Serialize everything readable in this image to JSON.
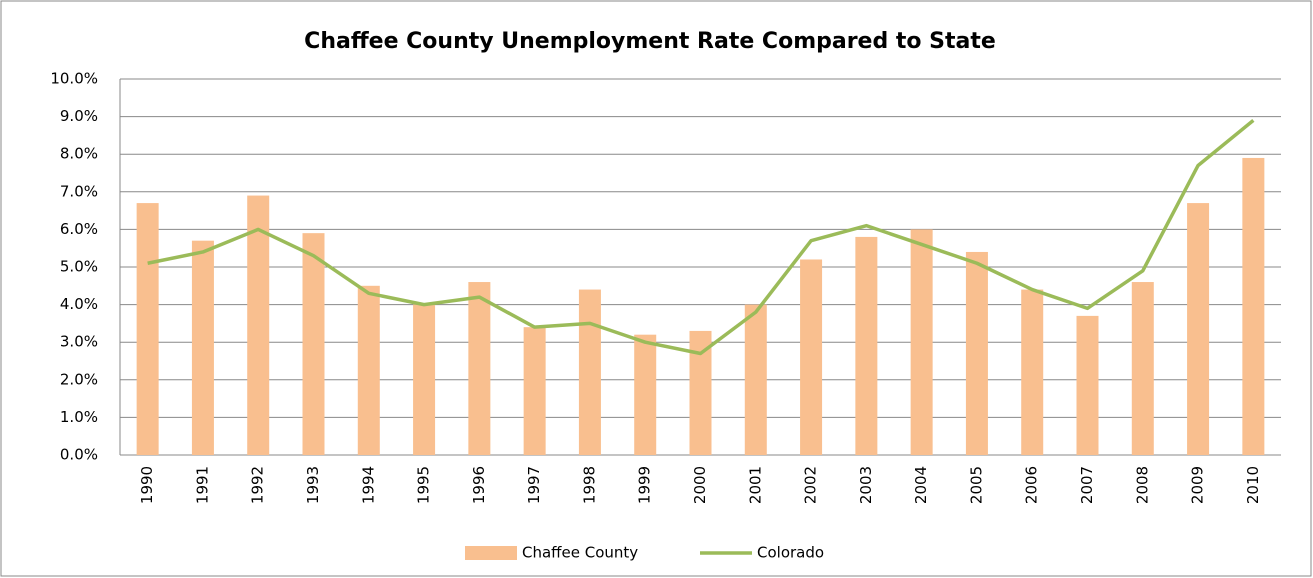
{
  "chart_data": {
    "type": "bar_line",
    "title": "Chaffee County Unemployment Rate Compared to State",
    "categories": [
      "1990",
      "1991",
      "1992",
      "1993",
      "1994",
      "1995",
      "1996",
      "1997",
      "1998",
      "1999",
      "2000",
      "2001",
      "2002",
      "2003",
      "2004",
      "2005",
      "2006",
      "2007",
      "2008",
      "2009",
      "2010"
    ],
    "series": [
      {
        "name": "Chaffee County",
        "type": "bar",
        "color": "#f9bf8f",
        "values": [
          6.7,
          5.7,
          6.9,
          5.9,
          4.5,
          4.0,
          4.6,
          3.4,
          4.4,
          3.2,
          3.3,
          4.0,
          5.2,
          5.8,
          6.0,
          5.4,
          4.4,
          3.7,
          4.6,
          6.7,
          7.9
        ]
      },
      {
        "name": "Colorado",
        "type": "line",
        "color": "#9bbb59",
        "values": [
          5.1,
          5.4,
          6.0,
          5.3,
          4.3,
          4.0,
          4.2,
          3.4,
          3.5,
          3.0,
          2.7,
          3.8,
          5.7,
          6.1,
          5.6,
          5.1,
          4.4,
          3.9,
          4.9,
          7.7,
          8.9
        ]
      }
    ],
    "ylim": [
      0,
      10
    ],
    "yticks": [
      {
        "value": 0,
        "label": "0.0%"
      },
      {
        "value": 1,
        "label": "1.0%"
      },
      {
        "value": 2,
        "label": "2.0%"
      },
      {
        "value": 3,
        "label": "3.0%"
      },
      {
        "value": 4,
        "label": "4.0%"
      },
      {
        "value": 5,
        "label": "5.0%"
      },
      {
        "value": 6,
        "label": "6.0%"
      },
      {
        "value": 7,
        "label": "7.0%"
      },
      {
        "value": 8,
        "label": "8.0%"
      },
      {
        "value": 9,
        "label": "9.0%"
      },
      {
        "value": 10,
        "label": "10.0%"
      }
    ],
    "grid": true,
    "legend": "bottom"
  }
}
